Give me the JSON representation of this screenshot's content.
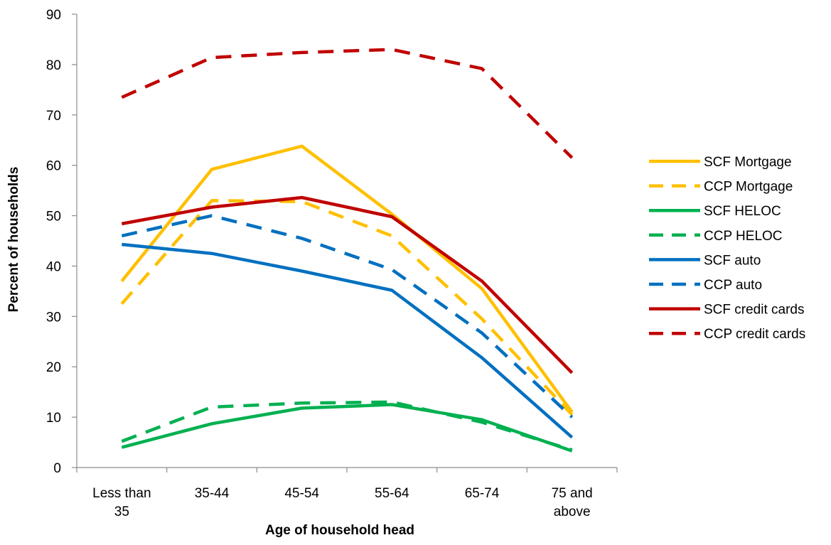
{
  "chart_data": {
    "type": "line",
    "title": "",
    "xlabel": "Age of household head",
    "ylabel": "Percent of households",
    "ylim": [
      0,
      90
    ],
    "yticks": [
      "0",
      "10",
      "20",
      "30",
      "40",
      "50",
      "60",
      "70",
      "80",
      "90"
    ],
    "grid": false,
    "legend_position": "right",
    "categories": [
      [
        "Less than",
        "35"
      ],
      [
        "35-44"
      ],
      [
        "45-54"
      ],
      [
        "55-64"
      ],
      [
        "65-74"
      ],
      [
        "75 and",
        "above"
      ]
    ],
    "series": [
      {
        "name": "SCF Mortgage",
        "color": "#FFC000",
        "dash": false,
        "values": [
          37,
          59.2,
          63.8,
          50.3,
          35.5,
          11
        ]
      },
      {
        "name": "CCP Mortgage",
        "color": "#FFC000",
        "dash": true,
        "values": [
          32.5,
          53,
          52.8,
          46,
          29.5,
          10.5
        ]
      },
      {
        "name": "SCF HELOC",
        "color": "#00B050",
        "dash": false,
        "values": [
          4,
          8.7,
          11.8,
          12.5,
          9.5,
          3.3
        ]
      },
      {
        "name": "CCP HELOC",
        "color": "#00B050",
        "dash": true,
        "values": [
          5.2,
          12,
          12.8,
          13,
          9,
          3.5
        ]
      },
      {
        "name": "SCF auto",
        "color": "#0070C0",
        "dash": false,
        "values": [
          44.3,
          42.5,
          39,
          35.2,
          21.8,
          6
        ]
      },
      {
        "name": "CCP auto",
        "color": "#0070C0",
        "dash": true,
        "values": [
          46,
          50,
          45.5,
          39.3,
          26.7,
          10
        ]
      },
      {
        "name": "SCF credit cards",
        "color": "#C00000",
        "dash": false,
        "values": [
          48.4,
          51.7,
          53.6,
          49.8,
          37,
          18.8
        ]
      },
      {
        "name": "CCP credit cards",
        "color": "#C00000",
        "dash": true,
        "values": [
          73.5,
          81.4,
          82.4,
          83,
          79.2,
          61.5
        ]
      }
    ]
  }
}
